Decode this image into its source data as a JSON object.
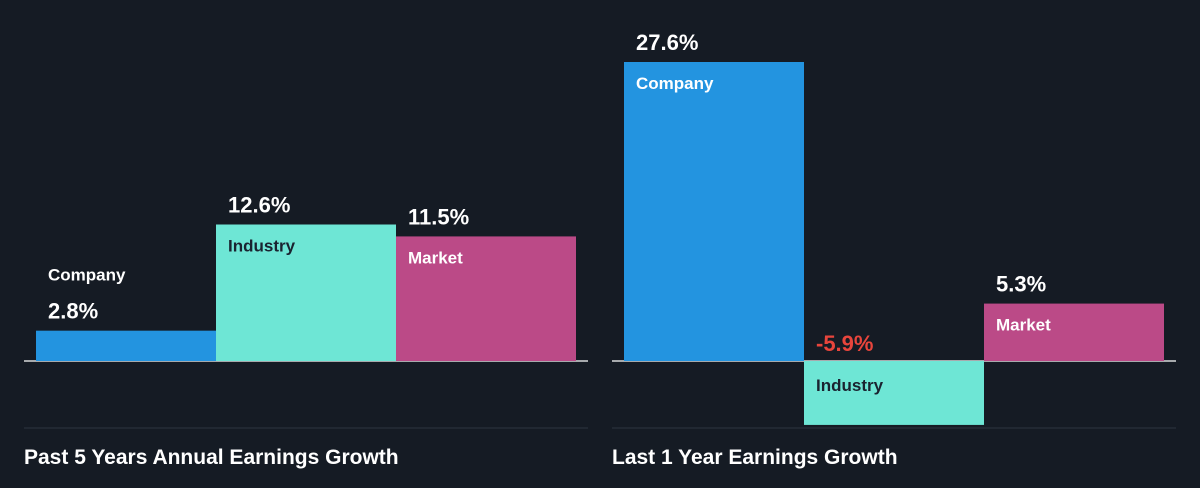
{
  "chart_data": [
    {
      "type": "bar",
      "title": "Past 5 Years Annual Earnings Growth",
      "categories": [
        "Company",
        "Industry",
        "Market"
      ],
      "values": [
        2.8,
        12.6,
        11.5
      ],
      "value_labels": [
        "2.8%",
        "12.6%",
        "11.5%"
      ],
      "unit": "%",
      "grid": false,
      "legend": "none"
    },
    {
      "type": "bar",
      "title": "Last 1 Year Earnings Growth",
      "categories": [
        "Company",
        "Industry",
        "Market"
      ],
      "values": [
        27.6,
        -5.9,
        5.3
      ],
      "value_labels": [
        "27.6%",
        "-5.9%",
        "5.3%"
      ],
      "unit": "%",
      "grid": false,
      "legend": "none"
    }
  ],
  "colors": {
    "background": "#151b24",
    "company": "#2394e0",
    "industry": "#6ee6d5",
    "market": "#bb4a87",
    "positive_label": "#ffffff",
    "negative_label": "#e8453c",
    "axis_line": "#ffffff",
    "divider": "#2d3540",
    "label_on_dark_bar": "#ffffff",
    "label_on_light_bar": "#1a2330"
  }
}
